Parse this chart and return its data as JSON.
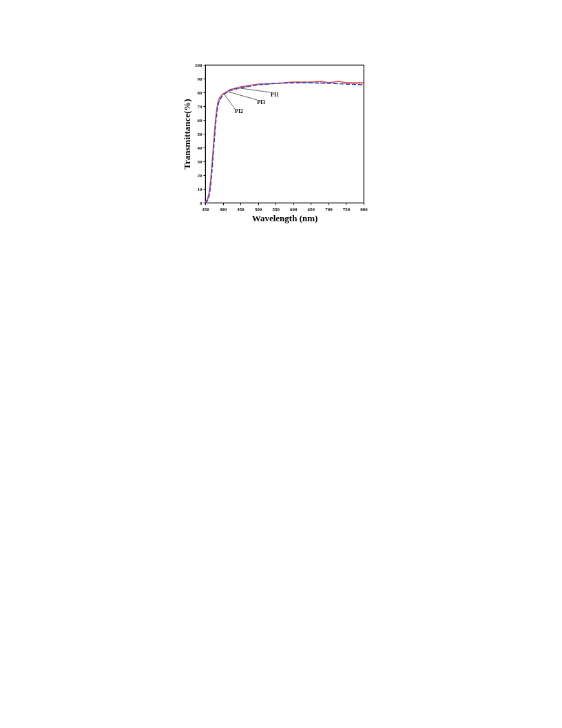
{
  "chart_data": {
    "type": "line",
    "xlabel": "Wavelength (nm)",
    "ylabel": "Transmittance(%)",
    "xlim": [
      350,
      800
    ],
    "xticks": [
      350,
      400,
      450,
      500,
      550,
      600,
      650,
      700,
      750,
      800
    ],
    "ylim": [
      0,
      100
    ],
    "yticks": [
      0,
      10,
      20,
      30,
      40,
      50,
      60,
      70,
      80,
      90,
      100
    ],
    "grid": false,
    "series": [
      {
        "color": "#e05050",
        "line_style": "solid",
        "x": [
          350,
          355,
          360,
          365,
          370,
          375,
          380,
          385,
          390,
          400,
          420,
          450,
          500,
          550,
          600,
          650,
          680,
          700,
          730,
          750,
          800
        ],
        "values": [
          0,
          2,
          6,
          16,
          31,
          48,
          63,
          72,
          76,
          79,
          82,
          84,
          86,
          86.5,
          87.5,
          87.5,
          88,
          87,
          88,
          87,
          87
        ]
      },
      {
        "color": "#606060",
        "line_style": "dotted",
        "x": [
          350,
          355,
          360,
          365,
          370,
          375,
          380,
          385,
          390,
          400,
          420,
          450,
          500,
          550,
          600,
          650,
          700,
          750,
          800
        ],
        "values": [
          0,
          1.5,
          4,
          13,
          28,
          45,
          60,
          70,
          75,
          78.5,
          81,
          83,
          85.5,
          86.5,
          87,
          87,
          87,
          86.5,
          86
        ]
      },
      {
        "color": "#3030d0",
        "line_style": "dashed",
        "x": [
          350,
          355,
          360,
          365,
          370,
          375,
          380,
          385,
          390,
          400,
          420,
          450,
          500,
          550,
          600,
          650,
          700,
          750,
          800
        ],
        "values": [
          0,
          1,
          3,
          11,
          25,
          42,
          58,
          69,
          74,
          78,
          81.5,
          83.5,
          85.5,
          86.5,
          87,
          87,
          86.5,
          86,
          85.5
        ]
      }
    ],
    "annotations": [
      {
        "text": "PI1",
        "x": 450,
        "y": 83
      },
      {
        "text": "PI3",
        "x": 415,
        "y": 80.5
      },
      {
        "text": "PI2",
        "x": 403,
        "y": 79
      }
    ]
  }
}
